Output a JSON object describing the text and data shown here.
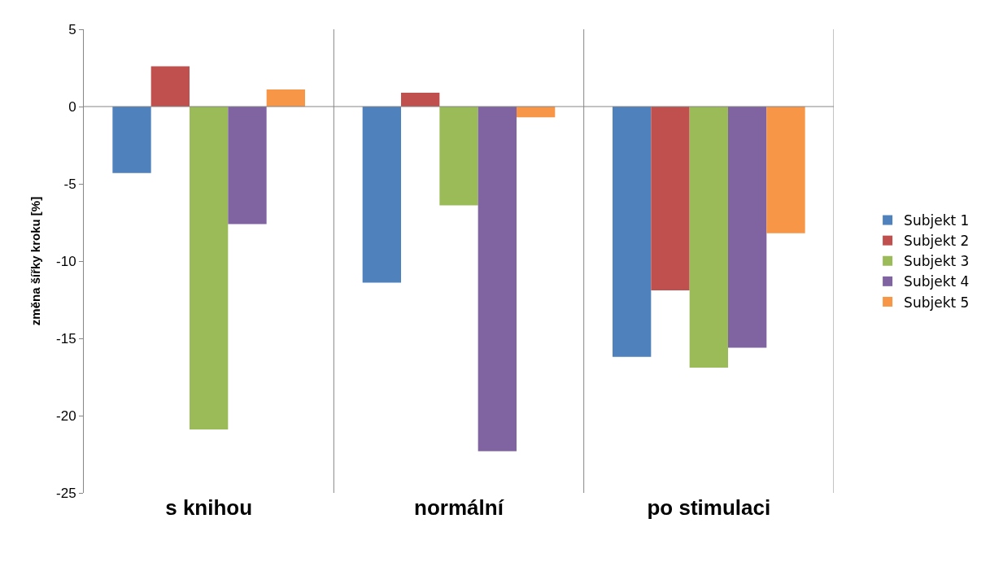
{
  "chart_data": {
    "type": "bar",
    "ylabel": "změna šířky kroku [%]",
    "categories": [
      "s knihou",
      "normální",
      "po stimulaci"
    ],
    "series": [
      {
        "name": "Subjekt 1",
        "color": "#4f81bd",
        "values": [
          -4.3,
          -11.4,
          -16.2
        ]
      },
      {
        "name": "Subjekt 2",
        "color": "#c0504d",
        "values": [
          2.6,
          0.9,
          -11.9
        ]
      },
      {
        "name": "Subjekt 3",
        "color": "#9bbb59",
        "values": [
          -20.9,
          -6.4,
          -16.9
        ]
      },
      {
        "name": "Subjekt 4",
        "color": "#8064a2",
        "values": [
          -7.6,
          -22.3,
          -15.6
        ]
      },
      {
        "name": "Subjekt 5",
        "color": "#f79646",
        "values": [
          1.1,
          -0.7,
          -8.2
        ]
      }
    ],
    "ylim": [
      -25,
      5
    ],
    "yticks": [
      -25,
      -20,
      -15,
      -10,
      -5,
      0,
      5
    ],
    "grid": "x",
    "legend": "right",
    "ref_lines": [
      {
        "axis": "y",
        "value": 0,
        "color": "#868686"
      }
    ]
  }
}
